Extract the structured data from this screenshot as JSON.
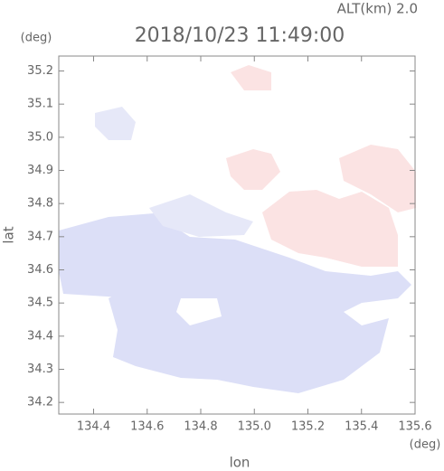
{
  "chart_data": {
    "type": "map",
    "title": "2018/10/23 11:49:00",
    "subtitle": "ALT(km) 2.0",
    "x_label": "lon",
    "y_label": "lat",
    "x_unit": "(deg)",
    "y_unit": "(deg)",
    "xlim": [
      134.27,
      135.6
    ],
    "ylim": [
      34.165,
      35.245
    ],
    "xticks": [
      134.4,
      134.6,
      134.8,
      {
        "value": 135.0,
        "label": "135.0"
      },
      135.2,
      135.4,
      135.6
    ],
    "yticks": [
      34.2,
      34.3,
      34.4,
      34.5,
      34.6,
      34.7,
      34.8,
      34.9,
      {
        "value": 35.0,
        "label": "35.0"
      },
      35.1,
      35.2
    ]
  }
}
